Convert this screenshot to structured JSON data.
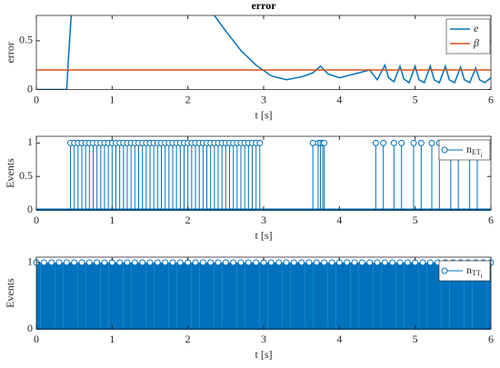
{
  "chart_data": [
    {
      "type": "line",
      "title": "error",
      "xlabel": "t [s]",
      "ylabel": "error",
      "xlim": [
        0,
        6
      ],
      "xticks": [
        0,
        1,
        2,
        3,
        4,
        5,
        6
      ],
      "ylim": [
        0,
        0.76
      ],
      "yticks": [
        0,
        0.5
      ],
      "legend": "upper right",
      "series": [
        {
          "name": "e",
          "color": "#0072bd",
          "x": [
            0,
            0.4,
            0.43,
            0.46,
            1.4,
            2.35,
            2.5,
            2.7,
            2.9,
            3.1,
            3.3,
            3.5,
            3.65,
            3.75,
            3.85,
            4.0,
            4.2,
            4.4,
            4.5,
            4.6,
            4.65,
            4.72,
            4.8,
            4.85,
            4.92,
            5.0,
            5.05,
            5.12,
            5.2,
            5.25,
            5.32,
            5.4,
            5.45,
            5.52,
            5.6,
            5.65,
            5.72,
            5.8,
            5.85,
            5.92,
            6.0
          ],
          "values": [
            0,
            0,
            0.4,
            0.76,
            null,
            0.76,
            0.6,
            0.4,
            0.25,
            0.14,
            0.1,
            0.13,
            0.17,
            0.24,
            0.16,
            0.12,
            0.16,
            0.2,
            0.1,
            0.25,
            0.12,
            0.08,
            0.24,
            0.11,
            0.07,
            0.24,
            0.1,
            0.07,
            0.24,
            0.1,
            0.07,
            0.24,
            0.1,
            0.07,
            0.23,
            0.1,
            0.07,
            0.22,
            0.1,
            0.07,
            0.12
          ]
        },
        {
          "name": "β",
          "color": "#d95319",
          "x": [
            0,
            6
          ],
          "values": [
            0.2,
            0.2
          ]
        }
      ]
    },
    {
      "type": "stem",
      "xlabel": "t [s]",
      "ylabel": "Events",
      "xlim": [
        0,
        6
      ],
      "xticks": [
        0,
        1,
        2,
        3,
        4,
        5,
        6
      ],
      "ylim": [
        0,
        1.1
      ],
      "yticks": [
        0,
        0.5,
        1
      ],
      "legend": "upper right",
      "series": [
        {
          "name": "n",
          "name_sub": "ET",
          "name_subsub": "i",
          "color": "#0072bd",
          "x": [
            0.45,
            0.5,
            0.55,
            0.6,
            0.65,
            0.7,
            0.75,
            0.8,
            0.85,
            0.9,
            0.95,
            1.0,
            1.05,
            1.1,
            1.15,
            1.2,
            1.25,
            1.3,
            1.35,
            1.4,
            1.45,
            1.5,
            1.55,
            1.6,
            1.65,
            1.7,
            1.75,
            1.8,
            1.85,
            1.9,
            1.95,
            2.0,
            2.05,
            2.1,
            2.15,
            2.2,
            2.25,
            2.3,
            2.35,
            2.4,
            2.45,
            2.5,
            2.55,
            2.6,
            2.65,
            2.7,
            2.75,
            2.8,
            2.85,
            2.9,
            2.95,
            3.65,
            3.72,
            3.75,
            3.78,
            3.8,
            4.48,
            4.58,
            4.72,
            4.82,
            4.98,
            5.08,
            5.22,
            5.32,
            5.47,
            5.57,
            5.72,
            5.82
          ],
          "values": [
            1,
            1,
            1,
            1,
            1,
            1,
            1,
            1,
            1,
            1,
            1,
            1,
            1,
            1,
            1,
            1,
            1,
            1,
            1,
            1,
            1,
            1,
            1,
            1,
            1,
            1,
            1,
            1,
            1,
            1,
            1,
            1,
            1,
            1,
            1,
            1,
            1,
            1,
            1,
            1,
            1,
            1,
            1,
            1,
            1,
            1,
            1,
            1,
            1,
            1,
            1,
            1,
            1,
            1,
            1,
            1,
            1,
            1,
            1,
            1,
            1,
            1,
            1,
            1,
            1,
            1,
            1,
            1
          ]
        }
      ]
    },
    {
      "type": "stem",
      "xlabel": "t [s]",
      "ylabel": "Events",
      "xlim": [
        0,
        6
      ],
      "xticks": [
        0,
        1,
        2,
        3,
        4,
        5,
        6
      ],
      "ylim": [
        0,
        1.08
      ],
      "yticks": [
        0,
        1
      ],
      "legend": "upper right",
      "series": [
        {
          "name": "n",
          "name_sub": "TT",
          "name_subsub": "i",
          "color": "#0072bd",
          "x": [
            0,
            0.1,
            0.2,
            0.3,
            0.4,
            0.5,
            0.6,
            0.7,
            0.8,
            0.9,
            1.0,
            1.1,
            1.2,
            1.3,
            1.4,
            1.5,
            1.6,
            1.7,
            1.8,
            1.9,
            2.0,
            2.1,
            2.2,
            2.3,
            2.4,
            2.5,
            2.6,
            2.7,
            2.8,
            2.9,
            3.0,
            3.1,
            3.2,
            3.3,
            3.4,
            3.5,
            3.6,
            3.7,
            3.8,
            3.9,
            4.0,
            4.1,
            4.2,
            4.3,
            4.4,
            4.5,
            4.6,
            4.7,
            4.8,
            4.9,
            5.0,
            5.1,
            5.2,
            5.3,
            5.4,
            5.5,
            5.6,
            5.7,
            5.8,
            5.9,
            6.0
          ],
          "values": [
            1,
            1,
            1,
            1,
            1,
            1,
            1,
            1,
            1,
            1,
            1,
            1,
            1,
            1,
            1,
            1,
            1,
            1,
            1,
            1,
            1,
            1,
            1,
            1,
            1,
            1,
            1,
            1,
            1,
            1,
            1,
            1,
            1,
            1,
            1,
            1,
            1,
            1,
            1,
            1,
            1,
            1,
            1,
            1,
            1,
            1,
            1,
            1,
            1,
            1,
            1,
            1,
            1,
            1,
            1,
            1,
            1,
            1,
            1,
            1,
            1
          ]
        }
      ]
    }
  ]
}
